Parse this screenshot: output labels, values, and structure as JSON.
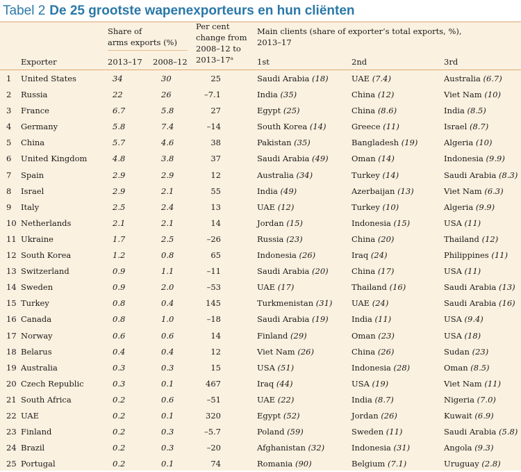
{
  "title": {
    "lead": "Tabel 2",
    "main": "De 25 grootste wapenexporteurs en hun cliënten"
  },
  "headers": {
    "exporter": "Exporter",
    "share": "Share of\narms exports (%)",
    "share_sub1": "2013–17",
    "share_sub2": "2008–12",
    "change": "Per cent\nchange from\n2008–12 to\n2013–17ᵃ",
    "clients": "Main clients  (share of exporter’s total exports, %),\n2013–17",
    "c1": "1st",
    "c2": "2nd",
    "c3": "3rd"
  },
  "rows": [
    {
      "rank": "1",
      "exporter": "United States",
      "s1317": "34",
      "s0812": "30",
      "change": "25",
      "c1": {
        "name": "Saudi Arabia",
        "pct": "(18)"
      },
      "c2": {
        "name": "UAE",
        "pct": "(7.4)"
      },
      "c3": {
        "name": "Australia",
        "pct": "(6.7)"
      }
    },
    {
      "rank": "2",
      "exporter": "Russia",
      "s1317": "22",
      "s0812": "26",
      "change": "–7.1",
      "c1": {
        "name": "India",
        "pct": "(35)"
      },
      "c2": {
        "name": "China",
        "pct": "(12)"
      },
      "c3": {
        "name": "Viet Nam",
        "pct": "(10)"
      }
    },
    {
      "rank": "3",
      "exporter": "France",
      "s1317": "6.7",
      "s0812": "5.8",
      "change": "27",
      "c1": {
        "name": "Egypt",
        "pct": "(25)"
      },
      "c2": {
        "name": "China",
        "pct": "(8.6)"
      },
      "c3": {
        "name": "India",
        "pct": "(8.5)"
      }
    },
    {
      "rank": "4",
      "exporter": "Germany",
      "s1317": "5.8",
      "s0812": "7.4",
      "change": "–14",
      "c1": {
        "name": "South Korea",
        "pct": "(14)"
      },
      "c2": {
        "name": "Greece",
        "pct": "(11)"
      },
      "c3": {
        "name": "Israel",
        "pct": "(8.7)"
      }
    },
    {
      "rank": "5",
      "exporter": "China",
      "s1317": "5.7",
      "s0812": "4.6",
      "change": "38",
      "c1": {
        "name": "Pakistan",
        "pct": "(35)"
      },
      "c2": {
        "name": "Bangladesh",
        "pct": "(19)"
      },
      "c3": {
        "name": "Algeria",
        "pct": "(10)"
      }
    },
    {
      "rank": "6",
      "exporter": "United Kingdom",
      "s1317": "4.8",
      "s0812": "3.8",
      "change": "37",
      "c1": {
        "name": "Saudi Arabia",
        "pct": "(49)"
      },
      "c2": {
        "name": "Oman",
        "pct": "(14)"
      },
      "c3": {
        "name": "Indonesia",
        "pct": "(9.9)"
      }
    },
    {
      "rank": "7",
      "exporter": "Spain",
      "s1317": "2.9",
      "s0812": "2.9",
      "change": "12",
      "c1": {
        "name": "Australia",
        "pct": "(34)"
      },
      "c2": {
        "name": "Turkey",
        "pct": "(14)"
      },
      "c3": {
        "name": "Saudi Arabia",
        "pct": "(8.3)"
      }
    },
    {
      "rank": "8",
      "exporter": "Israel",
      "s1317": "2.9",
      "s0812": "2.1",
      "change": "55",
      "c1": {
        "name": "India",
        "pct": "(49)"
      },
      "c2": {
        "name": "Azerbaijan",
        "pct": "(13)"
      },
      "c3": {
        "name": "Viet Nam",
        "pct": "(6.3)"
      }
    },
    {
      "rank": "9",
      "exporter": "Italy",
      "s1317": "2.5",
      "s0812": "2.4",
      "change": "13",
      "c1": {
        "name": "UAE",
        "pct": "(12)"
      },
      "c2": {
        "name": "Turkey",
        "pct": "(10)"
      },
      "c3": {
        "name": "Algeria",
        "pct": "(9.9)"
      }
    },
    {
      "rank": "10",
      "exporter": "Netherlands",
      "s1317": "2.1",
      "s0812": "2.1",
      "change": "14",
      "c1": {
        "name": "Jordan",
        "pct": "(15)"
      },
      "c2": {
        "name": "Indonesia",
        "pct": "(15)"
      },
      "c3": {
        "name": "USA",
        "pct": "(11)"
      }
    },
    {
      "rank": "11",
      "exporter": "Ukraine",
      "s1317": "1.7",
      "s0812": "2.5",
      "change": "–26",
      "c1": {
        "name": "Russia",
        "pct": "(23)"
      },
      "c2": {
        "name": "China",
        "pct": "(20)"
      },
      "c3": {
        "name": "Thailand",
        "pct": "(12)"
      }
    },
    {
      "rank": "12",
      "exporter": "South Korea",
      "s1317": "1.2",
      "s0812": "0.8",
      "change": "65",
      "c1": {
        "name": "Indonesia",
        "pct": "(26)"
      },
      "c2": {
        "name": "Iraq",
        "pct": "(24)"
      },
      "c3": {
        "name": "Philippines",
        "pct": "(11)"
      }
    },
    {
      "rank": "13",
      "exporter": "Switzerland",
      "s1317": "0.9",
      "s0812": "1.1",
      "change": "–11",
      "c1": {
        "name": "Saudi Arabia",
        "pct": "(20)"
      },
      "c2": {
        "name": "China",
        "pct": "(17)"
      },
      "c3": {
        "name": "USA",
        "pct": "(11)"
      }
    },
    {
      "rank": "14",
      "exporter": "Sweden",
      "s1317": "0.9",
      "s0812": "2.0",
      "change": "–53",
      "c1": {
        "name": "UAE",
        "pct": "(17)"
      },
      "c2": {
        "name": "Thailand",
        "pct": "(16)"
      },
      "c3": {
        "name": "Saudi Arabia",
        "pct": "(13)"
      }
    },
    {
      "rank": "15",
      "exporter": "Turkey",
      "s1317": "0.8",
      "s0812": "0.4",
      "change": "145",
      "c1": {
        "name": "Turkmenistan",
        "pct": "(31)"
      },
      "c2": {
        "name": "UAE",
        "pct": "(24)"
      },
      "c3": {
        "name": "Saudi Arabia",
        "pct": "(16)"
      }
    },
    {
      "rank": "16",
      "exporter": "Canada",
      "s1317": "0.8",
      "s0812": "1.0",
      "change": "–18",
      "c1": {
        "name": "Saudi Arabia",
        "pct": "(19)"
      },
      "c2": {
        "name": "India",
        "pct": "(11)"
      },
      "c3": {
        "name": "USA",
        "pct": "(9.4)"
      }
    },
    {
      "rank": "17",
      "exporter": "Norway",
      "s1317": "0.6",
      "s0812": "0.6",
      "change": "14",
      "c1": {
        "name": "Finland",
        "pct": "(29)"
      },
      "c2": {
        "name": "Oman",
        "pct": "(23)"
      },
      "c3": {
        "name": "USA",
        "pct": "(18)"
      }
    },
    {
      "rank": "18",
      "exporter": "Belarus",
      "s1317": "0.4",
      "s0812": "0.4",
      "change": "12",
      "c1": {
        "name": "Viet Nam",
        "pct": "(26)"
      },
      "c2": {
        "name": "China",
        "pct": "(26)"
      },
      "c3": {
        "name": "Sudan",
        "pct": "(23)"
      }
    },
    {
      "rank": "19",
      "exporter": "Australia",
      "s1317": "0.3",
      "s0812": "0.3",
      "change": "15",
      "c1": {
        "name": "USA",
        "pct": "(51)"
      },
      "c2": {
        "name": "Indonesia",
        "pct": "(28)"
      },
      "c3": {
        "name": "Oman",
        "pct": "(8.5)"
      }
    },
    {
      "rank": "20",
      "exporter": "Czech Republic",
      "s1317": "0.3",
      "s0812": "0.1",
      "change": "467",
      "c1": {
        "name": "Iraq",
        "pct": "(44)"
      },
      "c2": {
        "name": "USA",
        "pct": "(19)"
      },
      "c3": {
        "name": "Viet Nam",
        "pct": "(11)"
      }
    },
    {
      "rank": "21",
      "exporter": "South Africa",
      "s1317": "0.2",
      "s0812": "0.6",
      "change": "–51",
      "c1": {
        "name": "UAE",
        "pct": "(22)"
      },
      "c2": {
        "name": "India",
        "pct": "(8.7)"
      },
      "c3": {
        "name": "Nigeria",
        "pct": "(7.0)"
      }
    },
    {
      "rank": "22",
      "exporter": "UAE",
      "s1317": "0.2",
      "s0812": "0.1",
      "change": "320",
      "c1": {
        "name": "Egypt",
        "pct": "(52)"
      },
      "c2": {
        "name": "Jordan",
        "pct": "(26)"
      },
      "c3": {
        "name": "Kuwait",
        "pct": "(6.9)"
      }
    },
    {
      "rank": "23",
      "exporter": "Finland",
      "s1317": "0.2",
      "s0812": "0.3",
      "change": "–5.7",
      "c1": {
        "name": "Poland",
        "pct": "(59)"
      },
      "c2": {
        "name": "Sweden",
        "pct": "(11)"
      },
      "c3": {
        "name": "Saudi Arabia",
        "pct": "(5.8)"
      }
    },
    {
      "rank": "24",
      "exporter": "Brazil",
      "s1317": "0.2",
      "s0812": "0.3",
      "change": "–20",
      "c1": {
        "name": "Afghanistan",
        "pct": "(32)"
      },
      "c2": {
        "name": "Indonesia",
        "pct": "(31)"
      },
      "c3": {
        "name": "Angola",
        "pct": "(9.3)"
      }
    },
    {
      "rank": "25",
      "exporter": "Portugal",
      "s1317": "0.2",
      "s0812": "0.1",
      "change": "74",
      "c1": {
        "name": "Romania",
        "pct": "(90)"
      },
      "c2": {
        "name": "Belgium",
        "pct": "(7.1)"
      },
      "c3": {
        "name": "Uruguay",
        "pct": "(2.8)"
      }
    }
  ]
}
